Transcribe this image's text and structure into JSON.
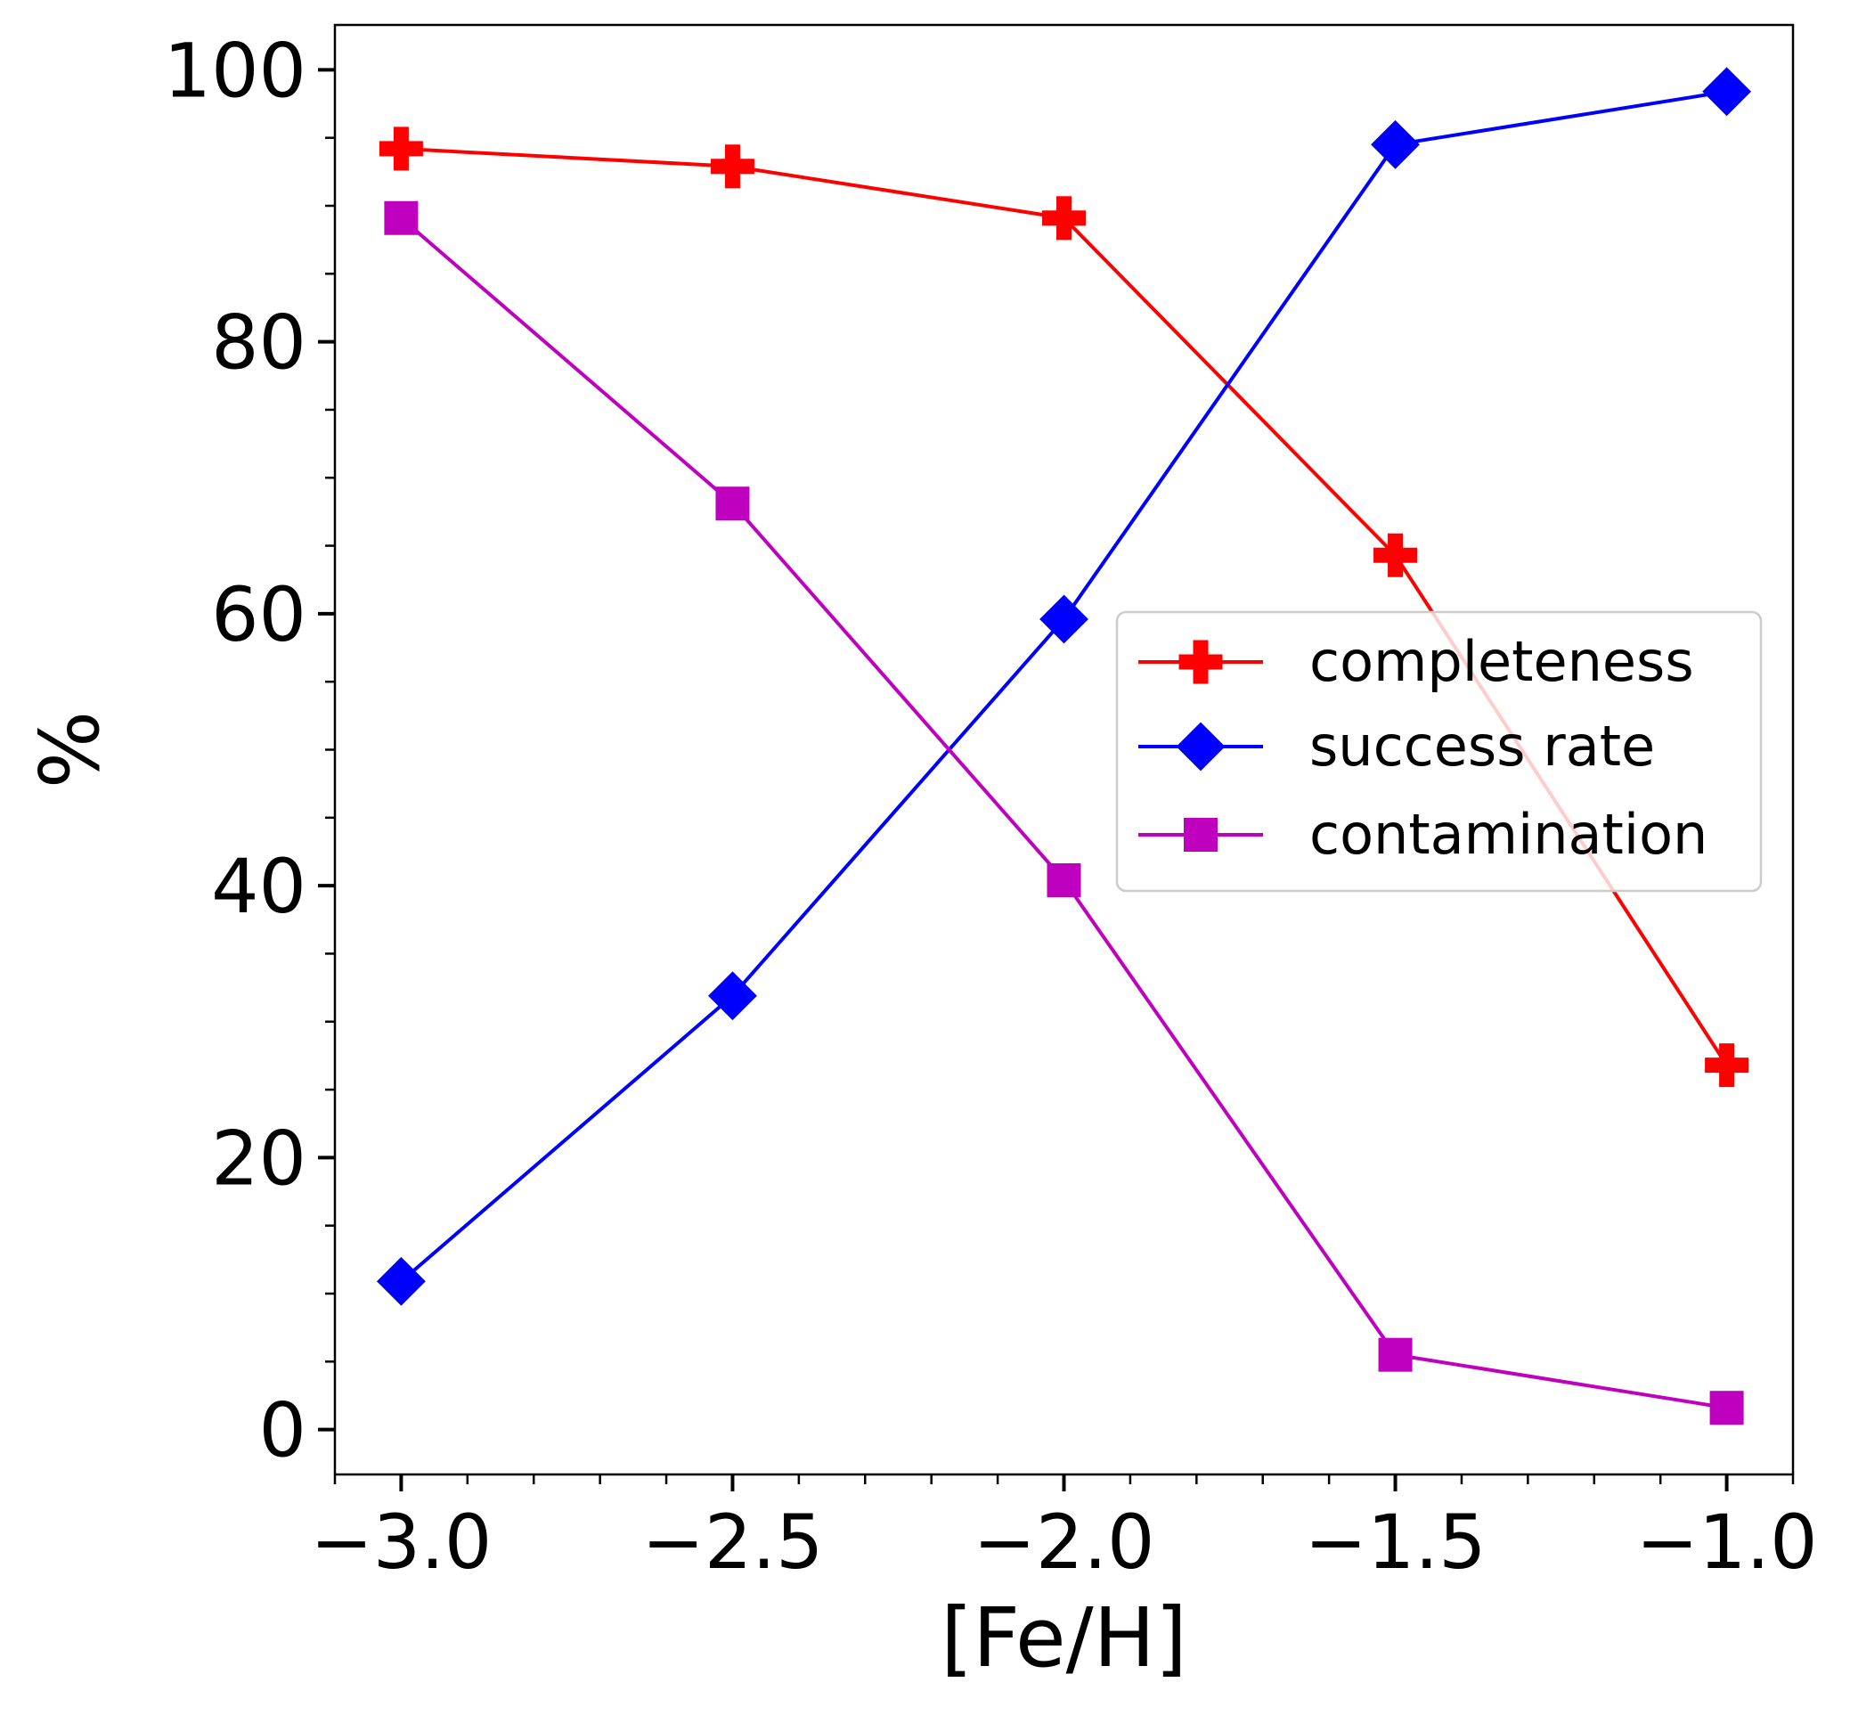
{
  "chart_data": {
    "type": "line",
    "xlabel": "[Fe/H]",
    "ylabel": "%",
    "xlim": [
      -3.1,
      -0.9
    ],
    "ylim": [
      -3.3,
      103.3
    ],
    "x_major_ticks": [
      -3.0,
      -2.5,
      -2.0,
      -1.5,
      -1.0
    ],
    "x_tick_labels": [
      "−3.0",
      "−2.5",
      "−2.0",
      "−1.5",
      "−1.0"
    ],
    "x_minor_step": 0.1,
    "y_major_ticks": [
      0,
      20,
      40,
      60,
      80,
      100
    ],
    "y_tick_labels": [
      "0",
      "20",
      "40",
      "60",
      "80",
      "100"
    ],
    "y_minor_step": 5,
    "grid": false,
    "legend_position": "center-right",
    "x": [
      -3.0,
      -2.5,
      -2.0,
      -1.5,
      -1.0
    ],
    "series": [
      {
        "name": "completeness",
        "color": "#ff0000",
        "marker": "plus",
        "values": [
          94.2,
          92.9,
          89.1,
          64.3,
          26.8
        ]
      },
      {
        "name": "success rate",
        "color": "#0000ff",
        "marker": "diamond",
        "values": [
          10.9,
          31.9,
          59.6,
          94.5,
          98.4
        ]
      },
      {
        "name": "contamination",
        "color": "#bf00bf",
        "marker": "square",
        "values": [
          89.1,
          68.1,
          40.4,
          5.5,
          1.6
        ]
      }
    ]
  }
}
